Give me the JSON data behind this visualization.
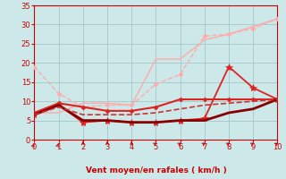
{
  "bg_color": "#cce8e8",
  "grid_color": "#aacccc",
  "xlabel": "Vent moyen/en rafales ( km/h )",
  "xlabel_color": "#cc0000",
  "tick_color": "#cc0000",
  "xmin": 0,
  "xmax": 10,
  "ymin": 0,
  "ymax": 35,
  "yticks": [
    0,
    5,
    10,
    15,
    20,
    25,
    30,
    35
  ],
  "xticks": [
    0,
    1,
    2,
    3,
    4,
    5,
    6,
    7,
    8,
    9,
    10
  ],
  "lines": [
    {
      "x": [
        0,
        1,
        2,
        3,
        4,
        5,
        6,
        7,
        8,
        9,
        10
      ],
      "y": [
        19,
        12,
        8.5,
        9,
        9,
        14.5,
        17,
        27,
        27.5,
        29,
        31.5
      ],
      "color": "#ffaaaa",
      "linewidth": 1.0,
      "marker": "D",
      "markersize": 2.5,
      "linestyle": "--"
    },
    {
      "x": [
        0,
        1,
        2,
        3,
        4,
        5,
        6,
        7,
        8,
        9,
        10
      ],
      "y": [
        7,
        7,
        9.5,
        9.5,
        9,
        21,
        21,
        26,
        27.5,
        29.5,
        31.5
      ],
      "color": "#ffaaaa",
      "linewidth": 1.0,
      "marker": null,
      "markersize": 0,
      "linestyle": "-"
    },
    {
      "x": [
        0,
        1,
        2,
        3,
        4,
        5,
        6,
        7,
        8,
        9,
        10
      ],
      "y": [
        7,
        9.5,
        8.5,
        7.5,
        7.5,
        8.5,
        10.5,
        10.5,
        10.5,
        10.5,
        10.5
      ],
      "color": "#dd2222",
      "linewidth": 1.5,
      "marker": "D",
      "markersize": 2.5,
      "linestyle": "-"
    },
    {
      "x": [
        0,
        1,
        2,
        3,
        4,
        5,
        6,
        7,
        8,
        9,
        10
      ],
      "y": [
        6.5,
        9,
        4.5,
        5,
        4.5,
        4.5,
        5,
        5.5,
        19,
        13.5,
        10.5
      ],
      "color": "#dd2222",
      "linewidth": 1.3,
      "marker": "*",
      "markersize": 6,
      "linestyle": "-"
    },
    {
      "x": [
        0,
        1,
        2,
        3,
        4,
        5,
        6,
        7,
        8,
        9,
        10
      ],
      "y": [
        6.5,
        9,
        5,
        5,
        4.5,
        4.5,
        5,
        5,
        7,
        8,
        10.5
      ],
      "color": "#880000",
      "linewidth": 2.0,
      "marker": null,
      "markersize": 0,
      "linestyle": "-"
    },
    {
      "x": [
        0,
        1,
        2,
        3,
        4,
        5,
        6,
        7,
        8,
        9,
        10
      ],
      "y": [
        6.5,
        8.5,
        6.5,
        6.5,
        6.5,
        7.0,
        8.0,
        9.0,
        9.5,
        10.0,
        10.5
      ],
      "color": "#cc3333",
      "linewidth": 1.2,
      "marker": null,
      "markersize": 0,
      "linestyle": "--"
    }
  ],
  "wind_arrows": {
    "angles_deg": [
      170,
      170,
      180,
      180,
      180,
      145,
      145,
      145,
      145,
      145,
      145
    ],
    "color": "#cc0000"
  }
}
